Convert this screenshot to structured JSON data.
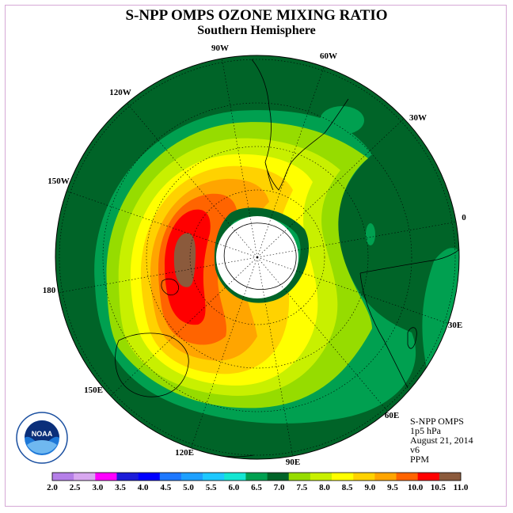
{
  "title": "S-NPP OMPS OZONE MIXING RATIO",
  "subtitle": "Southern Hemisphere",
  "info": {
    "instrument": "S-NPP OMPS",
    "pressure": "1p5 hPa",
    "date": "August 21, 2014",
    "version": "v6",
    "units": "PPM"
  },
  "longitude_labels": [
    {
      "text": "90W"
    },
    {
      "text": "60W"
    },
    {
      "text": "30W"
    },
    {
      "text": "0"
    },
    {
      "text": "30E"
    },
    {
      "text": "60E"
    },
    {
      "text": "90E"
    },
    {
      "text": "120E"
    },
    {
      "text": "150E"
    },
    {
      "text": "180"
    },
    {
      "text": "150W"
    },
    {
      "text": "120W"
    }
  ],
  "colorbar": {
    "ticks": [
      "2.0",
      "2.5",
      "3.0",
      "3.5",
      "4.0",
      "4.5",
      "5.0",
      "5.5",
      "6.0",
      "6.5",
      "7.0",
      "7.5",
      "8.0",
      "8.5",
      "9.0",
      "9.5",
      "10.0",
      "10.5",
      "11.0"
    ],
    "colors": [
      "#b57fe8",
      "#d8a8f0",
      "#ff00ff",
      "#1c1cd8",
      "#0000ff",
      "#1e78ff",
      "#1ea0ff",
      "#1ec8ff",
      "#14e6d2",
      "#00a050",
      "#006428",
      "#96dc00",
      "#c8f000",
      "#ffff00",
      "#ffd200",
      "#ffa500",
      "#ff6400",
      "#ff0000",
      "#8b5a3c"
    ]
  },
  "logo": {
    "text": "NOAA",
    "ring_text": "NATIONAL OCEANIC AND ATMOSPHERIC ADMINISTRATION · U.S. DEPARTMENT OF COMMERCE"
  }
}
